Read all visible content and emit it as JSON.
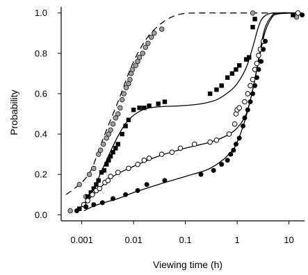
{
  "chart_data": {
    "type": "scatter",
    "xlabel": "Viewing time (h)",
    "ylabel": "Probability",
    "xscale": "log",
    "xlim": [
      0.0004,
      20
    ],
    "ylim": [
      -0.03,
      1.03
    ],
    "xticks": [
      0.001,
      0.01,
      0.1,
      1,
      10
    ],
    "xtick_labels": [
      "0.001",
      "0.01",
      "0.1",
      "1",
      "10"
    ],
    "yticks": [
      0.0,
      0.2,
      0.4,
      0.6,
      0.8,
      1.0
    ],
    "ytick_labels": [
      "0.0",
      "0.2",
      "0.4",
      "0.6",
      "0.8",
      "1.0"
    ],
    "grid": false,
    "series": [
      {
        "marker": "circle-gray",
        "fit": "dashed",
        "points": [
          [
            0.0006,
            0.02
          ],
          [
            0.0009,
            0.15
          ],
          [
            0.0012,
            0.09
          ],
          [
            0.0014,
            0.2
          ],
          [
            0.0017,
            0.23
          ],
          [
            0.0021,
            0.3
          ],
          [
            0.0023,
            0.32
          ],
          [
            0.0026,
            0.35
          ],
          [
            0.003,
            0.38
          ],
          [
            0.0033,
            0.4
          ],
          [
            0.0036,
            0.42
          ],
          [
            0.004,
            0.45
          ],
          [
            0.0045,
            0.48
          ],
          [
            0.005,
            0.5
          ],
          [
            0.0055,
            0.53
          ],
          [
            0.006,
            0.57
          ],
          [
            0.0065,
            0.6
          ],
          [
            0.0072,
            0.63
          ],
          [
            0.008,
            0.65
          ],
          [
            0.0085,
            0.67
          ],
          [
            0.009,
            0.7
          ],
          [
            0.0095,
            0.72
          ],
          [
            0.011,
            0.74
          ],
          [
            0.012,
            0.76
          ],
          [
            0.013,
            0.78
          ],
          [
            0.015,
            0.8
          ],
          [
            0.017,
            0.83
          ],
          [
            0.019,
            0.85
          ],
          [
            0.022,
            0.88
          ],
          [
            0.025,
            0.9
          ],
          [
            0.035,
            0.92
          ],
          [
            2.0,
            1.0
          ],
          [
            14,
            0.98
          ]
        ],
        "fit_points": [
          [
            0.0005,
            0.1
          ],
          [
            0.001,
            0.16
          ],
          [
            0.0015,
            0.22
          ],
          [
            0.002,
            0.3
          ],
          [
            0.003,
            0.42
          ],
          [
            0.005,
            0.56
          ],
          [
            0.008,
            0.7
          ],
          [
            0.012,
            0.8
          ],
          [
            0.02,
            0.89
          ],
          [
            0.035,
            0.95
          ],
          [
            0.06,
            0.985
          ],
          [
            0.1,
            0.998
          ],
          [
            0.2,
            1.0
          ],
          [
            1,
            1.0
          ],
          [
            10,
            1.0
          ],
          [
            18,
            1.0
          ]
        ]
      },
      {
        "marker": "square-black",
        "fit": "solid",
        "points": [
          [
            0.0009,
            0.03
          ],
          [
            0.0011,
            0.05
          ],
          [
            0.0013,
            0.09
          ],
          [
            0.0015,
            0.11
          ],
          [
            0.0017,
            0.13
          ],
          [
            0.0019,
            0.15
          ],
          [
            0.0021,
            0.17
          ],
          [
            0.0024,
            0.21
          ],
          [
            0.0027,
            0.22
          ],
          [
            0.003,
            0.25
          ],
          [
            0.0033,
            0.27
          ],
          [
            0.0036,
            0.29
          ],
          [
            0.004,
            0.31
          ],
          [
            0.0045,
            0.33
          ],
          [
            0.005,
            0.35
          ],
          [
            0.006,
            0.4
          ],
          [
            0.007,
            0.44
          ],
          [
            0.008,
            0.47
          ],
          [
            0.01,
            0.52
          ],
          [
            0.013,
            0.53
          ],
          [
            0.016,
            0.53
          ],
          [
            0.02,
            0.54
          ],
          [
            0.03,
            0.55
          ],
          [
            0.04,
            0.56
          ],
          [
            0.3,
            0.6
          ],
          [
            0.4,
            0.62
          ],
          [
            0.5,
            0.64
          ],
          [
            0.65,
            0.68
          ],
          [
            0.8,
            0.7
          ],
          [
            0.95,
            0.72
          ],
          [
            1.1,
            0.74
          ],
          [
            1.5,
            0.77
          ],
          [
            1.7,
            0.78
          ],
          [
            2.0,
            0.93
          ],
          [
            2.2,
            0.97
          ],
          [
            12,
            0.99
          ]
        ],
        "fit_points": [
          [
            0.0009,
            0.03
          ],
          [
            0.0015,
            0.1
          ],
          [
            0.002,
            0.17
          ],
          [
            0.003,
            0.27
          ],
          [
            0.005,
            0.39
          ],
          [
            0.008,
            0.47
          ],
          [
            0.015,
            0.52
          ],
          [
            0.03,
            0.535
          ],
          [
            0.08,
            0.54
          ],
          [
            0.2,
            0.55
          ],
          [
            0.4,
            0.57
          ],
          [
            0.7,
            0.61
          ],
          [
            1.0,
            0.65
          ],
          [
            1.5,
            0.73
          ],
          [
            2.0,
            0.83
          ],
          [
            2.5,
            0.92
          ],
          [
            3.0,
            0.97
          ],
          [
            4,
            0.995
          ],
          [
            6,
            1.0
          ],
          [
            18,
            1.0
          ]
        ]
      },
      {
        "marker": "circle-open",
        "fit": "solid",
        "points": [
          [
            0.0011,
            0.05
          ],
          [
            0.0013,
            0.07
          ],
          [
            0.0016,
            0.1
          ],
          [
            0.0019,
            0.12
          ],
          [
            0.0022,
            0.13
          ],
          [
            0.0028,
            0.16
          ],
          [
            0.0032,
            0.17
          ],
          [
            0.0036,
            0.19
          ],
          [
            0.005,
            0.21
          ],
          [
            0.008,
            0.23
          ],
          [
            0.012,
            0.25
          ],
          [
            0.016,
            0.27
          ],
          [
            0.02,
            0.28
          ],
          [
            0.035,
            0.3
          ],
          [
            0.055,
            0.31
          ],
          [
            0.08,
            0.33
          ],
          [
            0.15,
            0.35
          ],
          [
            0.3,
            0.36
          ],
          [
            0.4,
            0.37
          ],
          [
            0.7,
            0.4
          ],
          [
            0.9,
            0.45
          ],
          [
            0.95,
            0.5
          ],
          [
            1.0,
            0.52
          ],
          [
            1.1,
            0.53
          ],
          [
            1.4,
            0.56
          ],
          [
            1.6,
            0.6
          ],
          [
            1.8,
            0.64
          ],
          [
            2.0,
            0.67
          ],
          [
            2.2,
            0.72
          ],
          [
            2.4,
            0.75
          ],
          [
            2.6,
            0.79
          ],
          [
            2.8,
            0.82
          ],
          [
            3.2,
            0.86
          ],
          [
            15,
            1.0
          ]
        ],
        "fit_points": [
          [
            0.0011,
            0.05
          ],
          [
            0.002,
            0.12
          ],
          [
            0.004,
            0.19
          ],
          [
            0.01,
            0.24
          ],
          [
            0.03,
            0.29
          ],
          [
            0.1,
            0.33
          ],
          [
            0.3,
            0.36
          ],
          [
            0.6,
            0.39
          ],
          [
            1.0,
            0.43
          ],
          [
            1.5,
            0.5
          ],
          [
            2.0,
            0.62
          ],
          [
            2.5,
            0.75
          ],
          [
            3.0,
            0.86
          ],
          [
            3.5,
            0.93
          ],
          [
            4.5,
            0.98
          ],
          [
            6,
            1.0
          ],
          [
            18,
            1.0
          ]
        ]
      },
      {
        "marker": "circle-black",
        "fit": "solid",
        "points": [
          [
            0.0008,
            0.02
          ],
          [
            0.0012,
            0.04
          ],
          [
            0.0017,
            0.05
          ],
          [
            0.0025,
            0.06
          ],
          [
            0.004,
            0.08
          ],
          [
            0.007,
            0.1
          ],
          [
            0.012,
            0.12
          ],
          [
            0.018,
            0.15
          ],
          [
            0.04,
            0.17
          ],
          [
            0.2,
            0.2
          ],
          [
            0.35,
            0.22
          ],
          [
            0.5,
            0.25
          ],
          [
            0.65,
            0.27
          ],
          [
            0.75,
            0.3
          ],
          [
            0.85,
            0.32
          ],
          [
            0.95,
            0.35
          ],
          [
            1.1,
            0.38
          ],
          [
            1.3,
            0.44
          ],
          [
            1.4,
            0.48
          ],
          [
            1.6,
            0.52
          ],
          [
            1.8,
            0.56
          ],
          [
            2.0,
            0.6
          ],
          [
            2.2,
            0.64
          ],
          [
            2.4,
            0.68
          ],
          [
            2.6,
            0.72
          ],
          [
            2.9,
            0.76
          ],
          [
            3.2,
            0.82
          ],
          [
            3.5,
            0.86
          ],
          [
            18,
            0.99
          ]
        ],
        "fit_points": [
          [
            0.0011,
            0.02
          ],
          [
            0.002,
            0.05
          ],
          [
            0.005,
            0.08
          ],
          [
            0.01,
            0.11
          ],
          [
            0.03,
            0.15
          ],
          [
            0.1,
            0.19
          ],
          [
            0.3,
            0.23
          ],
          [
            0.7,
            0.3
          ],
          [
            1.0,
            0.36
          ],
          [
            1.5,
            0.49
          ],
          [
            2.0,
            0.62
          ],
          [
            2.5,
            0.74
          ],
          [
            3.0,
            0.84
          ],
          [
            3.5,
            0.91
          ],
          [
            4.5,
            0.97
          ],
          [
            6,
            0.995
          ],
          [
            18,
            1.0
          ]
        ]
      }
    ]
  }
}
